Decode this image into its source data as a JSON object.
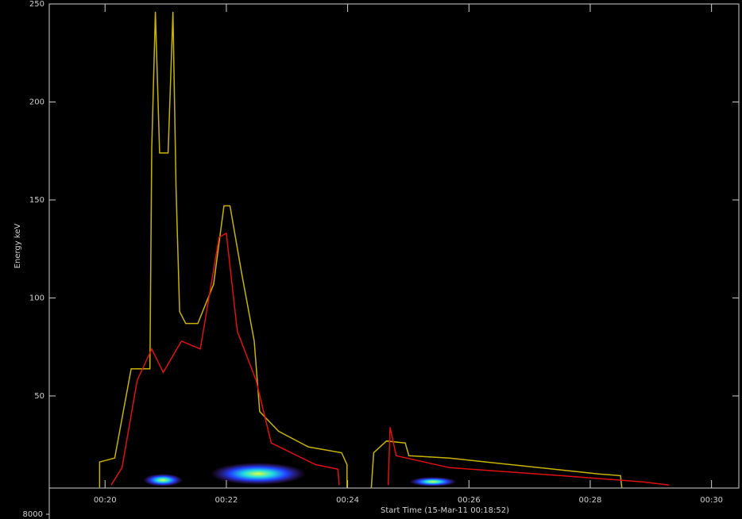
{
  "chart_data": {
    "type": "line",
    "ylabel": "Energy keV",
    "xlabel": "Start Time (15-Mar-11 00:18:52)",
    "lower_axis_label": "8000",
    "background": "#000000",
    "xlim": [
      19.08,
      30.45
    ],
    "xticks": [
      {
        "value": 20,
        "label": "00:20"
      },
      {
        "value": 22,
        "label": "00:22"
      },
      {
        "value": 24,
        "label": "00:24"
      },
      {
        "value": 26,
        "label": "00:26"
      },
      {
        "value": 28,
        "label": "00:28"
      },
      {
        "value": 30,
        "label": "00:30"
      }
    ],
    "ylim": [
      3,
      250
    ],
    "yticks": [
      50,
      100,
      150,
      200,
      250
    ],
    "series": [
      {
        "color": "#c8b400",
        "x": [
          19.91,
          19.91,
          20.16,
          20.43,
          20.74,
          20.77,
          20.83,
          20.9,
          21.04,
          21.12,
          21.17,
          21.23,
          21.33,
          21.53,
          21.79,
          21.96,
          22.06,
          22.25,
          22.46,
          22.55,
          22.86,
          23.35,
          23.9,
          23.99,
          23.99,
          null,
          24.39,
          24.43,
          24.64,
          24.95,
          25.01,
          25.68,
          26.91,
          28.14,
          28.5,
          28.52
        ],
        "y": [
          3.3,
          16.3,
          18.3,
          63.8,
          63.8,
          176,
          246,
          174,
          174,
          246,
          156,
          93,
          87,
          87,
          107,
          147,
          147,
          113,
          78,
          42,
          32,
          24,
          21,
          15,
          3.3,
          null,
          3.3,
          21,
          27,
          26,
          19.5,
          18.3,
          14.2,
          10.2,
          9.3,
          3.3
        ]
      },
      {
        "color": "#e01010",
        "x": [
          20.1,
          20.28,
          20.53,
          20.77,
          20.96,
          21.26,
          21.57,
          21.88,
          22.0,
          22.18,
          22.49,
          22.74,
          23.47,
          23.84,
          23.86,
          null,
          24.67,
          24.7,
          24.8,
          25.68,
          27.52,
          28.87,
          29.3
        ],
        "y": [
          4.5,
          13.4,
          58,
          74,
          62,
          78,
          74,
          131,
          133,
          83,
          58,
          26,
          15,
          12.6,
          4.5,
          null,
          4.5,
          34,
          19.5,
          13.4,
          9.3,
          6.1,
          4.5
        ]
      }
    ]
  }
}
